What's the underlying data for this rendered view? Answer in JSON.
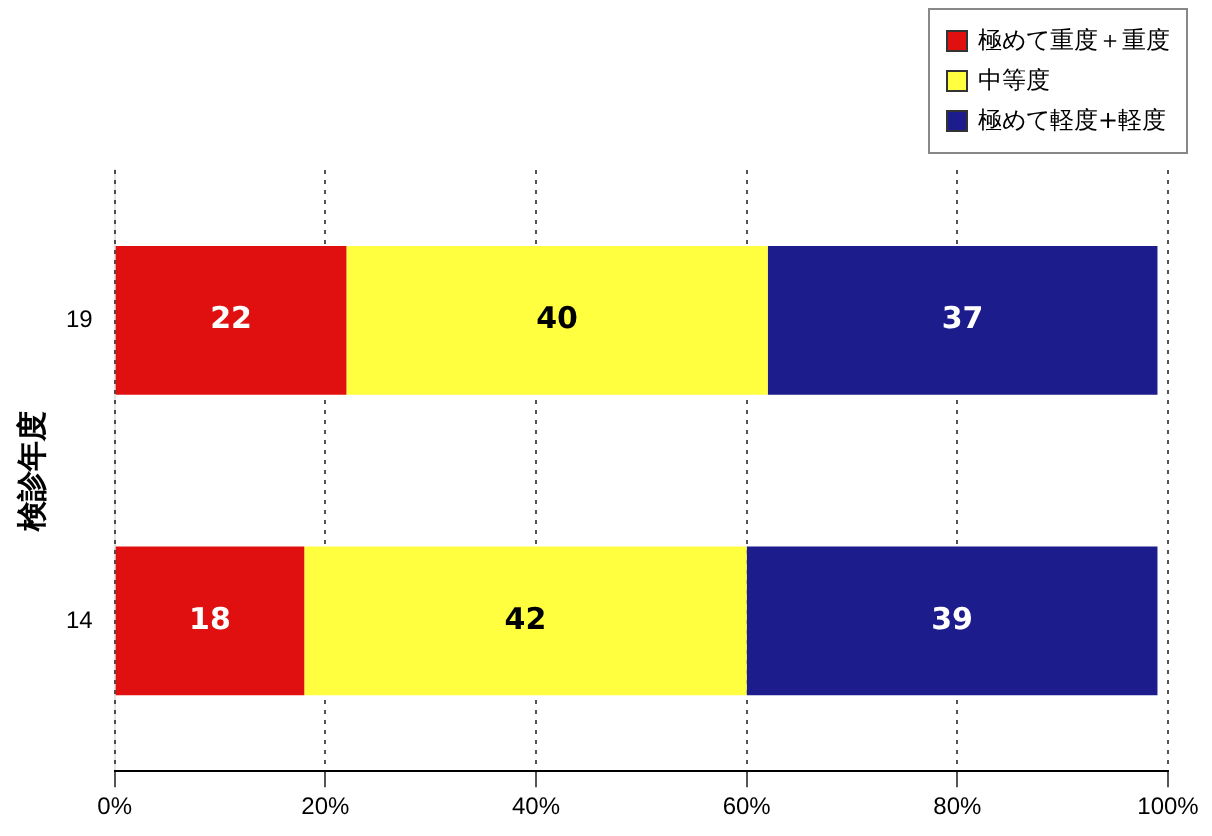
{
  "chart_data": {
    "type": "bar",
    "orientation": "horizontal",
    "stacked": true,
    "ylabel": "検診年度",
    "categories": [
      "19",
      "14"
    ],
    "series": [
      {
        "name": "極めて重度＋重度",
        "color": "#e01010",
        "values": [
          22,
          18
        ]
      },
      {
        "name": "中等度",
        "color": "#ffff40",
        "values": [
          40,
          42
        ]
      },
      {
        "name": "極めて軽度+軽度",
        "color": "#1c1c8c",
        "values": [
          37,
          39
        ]
      }
    ],
    "xlim": [
      0,
      100
    ],
    "xticks": [
      {
        "value": 0,
        "label": "0%"
      },
      {
        "value": 20,
        "label": "20%"
      },
      {
        "value": 40,
        "label": "40%"
      },
      {
        "value": 60,
        "label": "60%"
      },
      {
        "value": 80,
        "label": "80%"
      },
      {
        "value": 100,
        "label": "100%"
      }
    ],
    "grid": "x",
    "legend": "top right",
    "data_labels": true
  }
}
